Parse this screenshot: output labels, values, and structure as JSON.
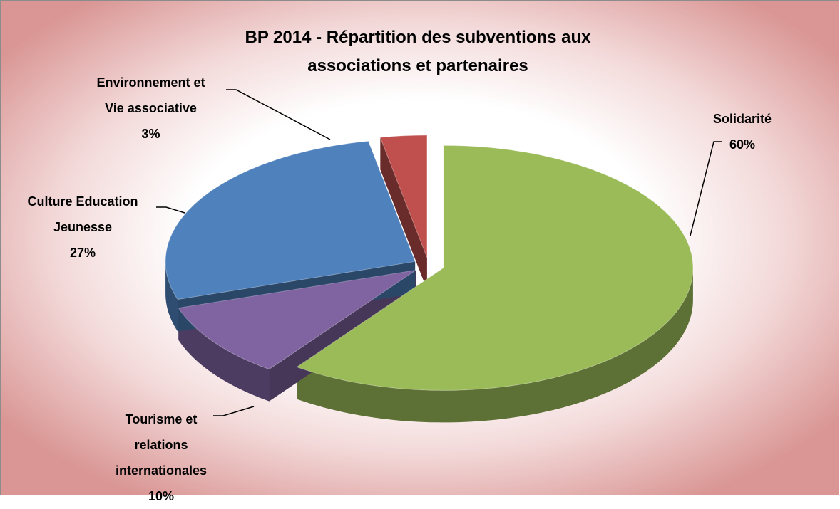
{
  "chart_data": {
    "type": "pie3d",
    "title": "BP 2014 - Répartition des subventions aux associations et partenaires",
    "categories": [
      "Solidarité",
      "Tourisme et relations internationales",
      "Culture Education Jeunesse",
      "Environnement et Vie associative"
    ],
    "values": [
      60,
      10,
      27,
      3
    ],
    "value_labels": [
      "60%",
      "10%",
      "27%",
      "3%"
    ],
    "colors": [
      "#9bbb59",
      "#8064a2",
      "#4f81bd",
      "#c0504d"
    ]
  }
}
